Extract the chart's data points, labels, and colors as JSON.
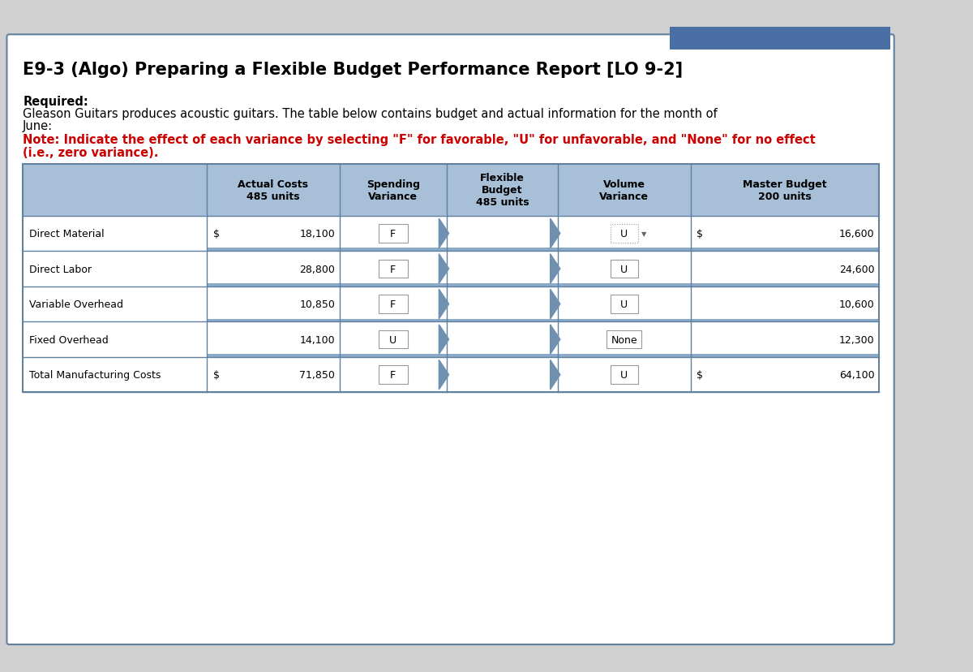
{
  "title": "E9-3 (Algo) Preparing a Flexible Budget Performance Report [LO 9-2]",
  "required_label": "Required:",
  "desc1": "Gleason Guitars produces acoustic guitars. The table below contains budget and actual information for the month of",
  "desc2": "June:",
  "note1": "Note: Indicate the effect of each variance by selecting \"F\" for favorable, \"U\" for unfavorable, and \"None\" for no effect",
  "note2": "(i.e., zero variance).",
  "header_bg": "#a8bfd8",
  "border_color": "#6080a0",
  "text_color_red": "#cc0000",
  "blue_bar_color": "#4a6fa5",
  "col_headers": [
    "",
    "Actual Costs\n485 units",
    "Spending\nVariance",
    "Flexible\nBudget\n485 units",
    "Volume\nVariance",
    "Master Budget\n200 units"
  ],
  "rows": [
    {
      "label": "Direct Material",
      "dollar1": "$",
      "val1": "18,100",
      "sv": "F",
      "fv": "",
      "vv": "U",
      "vv_dotted": true,
      "dollar2": "$",
      "val2": "16,600"
    },
    {
      "label": "Direct Labor",
      "dollar1": "",
      "val1": "28,800",
      "sv": "F",
      "fv": "",
      "vv": "U",
      "vv_dotted": false,
      "dollar2": "",
      "val2": "24,600"
    },
    {
      "label": "Variable Overhead",
      "dollar1": "",
      "val1": "10,850",
      "sv": "F",
      "fv": "",
      "vv": "U",
      "vv_dotted": false,
      "dollar2": "",
      "val2": "10,600"
    },
    {
      "label": "Fixed Overhead",
      "dollar1": "",
      "val1": "14,100",
      "sv": "U",
      "fv": "",
      "vv": "None",
      "vv_dotted": false,
      "dollar2": "",
      "val2": "12,300"
    },
    {
      "label": "Total Manufacturing Costs",
      "dollar1": "$",
      "val1": "71,850",
      "sv": "F",
      "fv": "",
      "vv": "U",
      "vv_dotted": false,
      "dollar2": "$",
      "val2": "64,100"
    }
  ],
  "separator_color": "#8aaac8",
  "arrow_color": "#7090b0",
  "fig_bg": "#d0d0d0",
  "box_bg": "#ffffff",
  "box_border": "#6080a0"
}
